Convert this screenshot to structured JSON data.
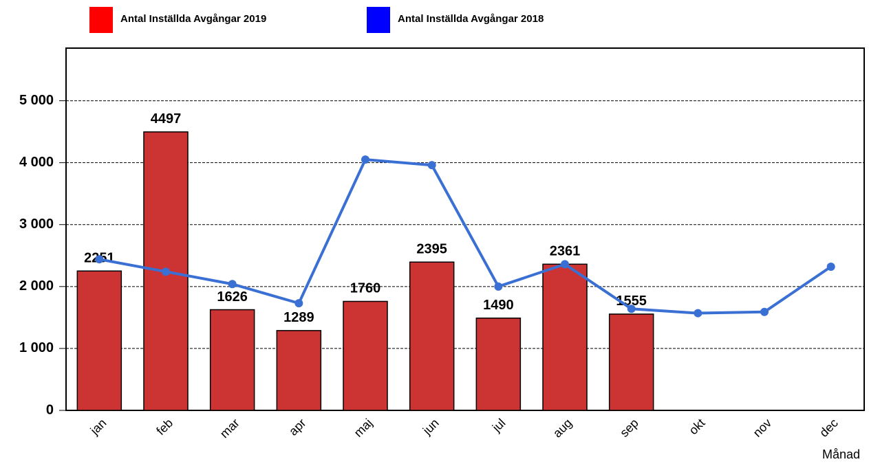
{
  "chart_data": {
    "type": "bar-line",
    "x_label": "Månad",
    "categories": [
      "jan",
      "feb",
      "mar",
      "apr",
      "maj",
      "jun",
      "jul",
      "aug",
      "sep",
      "okt",
      "nov",
      "dec"
    ],
    "series": [
      {
        "name": "Antal Inställda Avgångar 2019",
        "type": "bar",
        "color": "#cc3333",
        "legend_color": "#ff0000",
        "values": [
          2251,
          4497,
          1626,
          1289,
          1760,
          2395,
          1490,
          2361,
          1555,
          null,
          null,
          null
        ]
      },
      {
        "name": "Antal Inställda Avgångar 2018",
        "type": "line",
        "color": "#3a6fd4",
        "legend_color": "#0000ff",
        "values": [
          2440,
          2240,
          2040,
          1730,
          4050,
          3960,
          2000,
          2360,
          1640,
          1570,
          1590,
          2320
        ]
      }
    ],
    "ylim": [
      0,
      5850
    ],
    "yticks": [
      0,
      {
        "value": 1000,
        "label": "1 000"
      },
      {
        "value": 2000,
        "label": "2 000"
      },
      {
        "value": 3000,
        "label": "3 000"
      },
      {
        "value": 4000,
        "label": "4 000"
      },
      {
        "value": 5000,
        "label": "5 000"
      }
    ],
    "grid": true
  }
}
